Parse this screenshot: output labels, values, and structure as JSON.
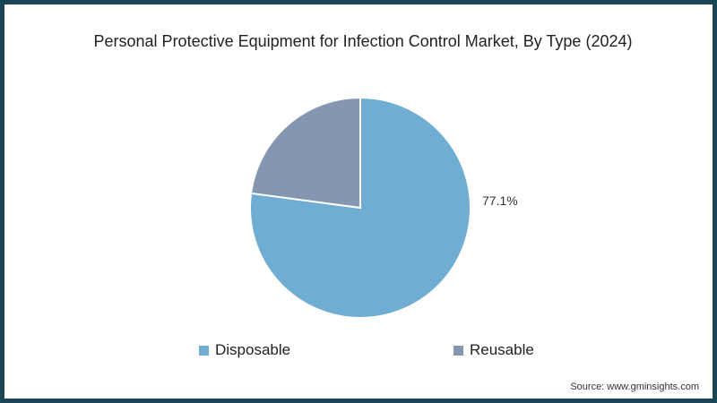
{
  "chart_data": {
    "type": "pie",
    "title": "Personal Protective Equipment for Infection Control Market, By Type (2024)",
    "categories": [
      "Disposable",
      "Reusable"
    ],
    "values": [
      77.1,
      22.9
    ],
    "colors": [
      "#6fadd2",
      "#8597b0"
    ],
    "data_labels": [
      "77.1%",
      ""
    ],
    "legend_position": "bottom"
  },
  "title": "Personal Protective Equipment for Infection Control Market, By Type (2024)",
  "label_disposable": "77.1%",
  "legend": [
    {
      "label": "Disposable",
      "color": "#6fadd2"
    },
    {
      "label": "Reusable",
      "color": "#8597b0"
    }
  ],
  "source": "Source: www.gminsights.com"
}
